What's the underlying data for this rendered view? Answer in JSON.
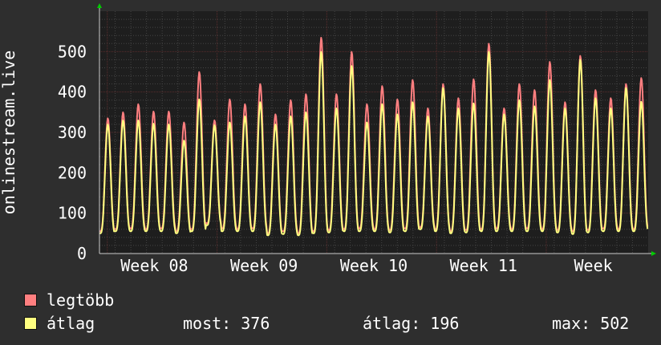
{
  "chart_data": {
    "type": "line",
    "ylabel": "onlinestream.live",
    "ylim": [
      0,
      600
    ],
    "yticks": [
      0,
      100,
      200,
      300,
      400,
      500
    ],
    "x_tick_labels": [
      "Week 08",
      "Week 09",
      "Week 10",
      "Week 11",
      "Week"
    ],
    "x_unit": "days since start of Week 08 window",
    "xlim": [
      0,
      35
    ],
    "grid": true,
    "colors": {
      "background": "#2e2e2e",
      "plot_bg": "#1e1e1e",
      "grid_major": "#5a2d2d",
      "grid_minor": "#444444",
      "axis": "#cccccc",
      "max_line": "#ff7f80",
      "avg_line": "#ffff80",
      "arrow": "#00cc00"
    },
    "series": [
      {
        "name": "legtöbb",
        "color": "#ff7f80",
        "daily_peak": [
          335,
          350,
          370,
          352,
          352,
          325,
          450,
          330,
          382,
          370,
          420,
          345,
          380,
          395,
          535,
          395,
          500,
          370,
          415,
          382,
          430,
          360,
          420,
          385,
          432,
          520,
          360,
          420,
          405,
          475,
          375,
          490,
          405,
          385,
          420,
          435
        ],
        "daily_min": [
          55,
          60,
          62,
          60,
          62,
          55,
          60,
          75,
          62,
          60,
          62,
          50,
          55,
          50,
          55,
          58,
          60,
          62,
          60,
          58,
          62,
          65,
          60,
          55,
          58,
          60,
          62,
          60,
          62,
          60,
          58,
          55,
          58,
          62,
          60,
          60
        ]
      },
      {
        "name": "átlag",
        "color": "#ffff80",
        "daily_peak": [
          320,
          330,
          330,
          322,
          320,
          280,
          382,
          318,
          325,
          340,
          375,
          320,
          340,
          350,
          500,
          360,
          465,
          325,
          370,
          345,
          375,
          340,
          410,
          360,
          372,
          500,
          345,
          380,
          365,
          430,
          360,
          480,
          385,
          360,
          410,
          376
        ],
        "daily_min": [
          50,
          55,
          55,
          55,
          55,
          50,
          55,
          70,
          55,
          55,
          55,
          45,
          48,
          45,
          50,
          52,
          55,
          55,
          55,
          52,
          55,
          60,
          55,
          50,
          52,
          55,
          55,
          55,
          55,
          55,
          52,
          48,
          52,
          55,
          55,
          55
        ]
      }
    ]
  },
  "legend": {
    "max_label": "legtöbb",
    "avg_label": "átlag"
  },
  "stats": {
    "now": "most: 376",
    "avg": "átlag: 196",
    "max": "max: 502"
  }
}
